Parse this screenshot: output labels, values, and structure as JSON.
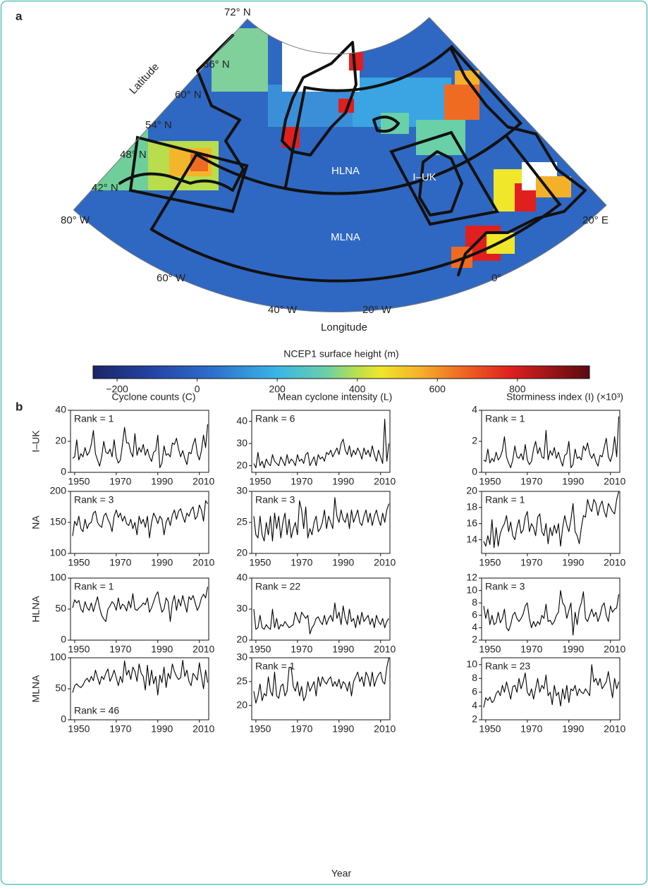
{
  "figure": {
    "label_a": "a",
    "label_b": "b"
  },
  "map": {
    "lat_labels": [
      "72° N",
      "66° N",
      "60° N",
      "54° N",
      "48° N",
      "42° N"
    ],
    "lon_labels": [
      "80° W",
      "60° W",
      "40° W",
      "20° W",
      "0°",
      "20° E"
    ],
    "xlabel": "Longitude",
    "ylabel": "Latitude",
    "regions": [
      "HLNA",
      "I–UK",
      "MLNA"
    ]
  },
  "colorbar": {
    "title": "NCEP1 surface height (m)",
    "xlim": [
      -260,
      980
    ],
    "xticks": [
      {
        "value": -200,
        "label": "−200"
      },
      0,
      200,
      400,
      600,
      800
    ]
  },
  "chart_data": {
    "type": "line",
    "color": "#000000",
    "x": [
      1949,
      1950,
      1951,
      1952,
      1953,
      1954,
      1955,
      1956,
      1957,
      1958,
      1959,
      1960,
      1961,
      1962,
      1963,
      1964,
      1965,
      1966,
      1967,
      1968,
      1969,
      1970,
      1971,
      1972,
      1973,
      1974,
      1975,
      1976,
      1977,
      1978,
      1979,
      1980,
      1981,
      1982,
      1983,
      1984,
      1985,
      1986,
      1987,
      1988,
      1989,
      1990,
      1991,
      1992,
      1993,
      1994,
      1995,
      1996,
      1997,
      1998,
      1999,
      2000,
      2001,
      2002,
      2003,
      2004,
      2005,
      2006,
      2007,
      2008,
      2009,
      2010,
      2011,
      2012,
      2013,
      2014
    ],
    "xlim": [
      1948,
      2014.5
    ],
    "xticks": [
      1950,
      1970,
      1990,
      2010
    ],
    "xlabel": "Year",
    "column_titles": [
      "Cyclone counts (C)",
      "Mean cyclone intensity (L)",
      "Storminess index (I) (×10³)"
    ],
    "row_labels": [
      "I–UK",
      "NA",
      "HLNA",
      "MLNA"
    ],
    "panels": [
      {
        "annotation": "Rank = 1",
        "annotation_position": "upper-left",
        "ylim": [
          0,
          40
        ],
        "yticks": [
          0,
          20,
          40
        ],
        "values": [
          9,
          10,
          21,
          8,
          12,
          10,
          16,
          11,
          13,
          18,
          27,
          12,
          8,
          4,
          10,
          20,
          13,
          12,
          15,
          10,
          21,
          10,
          6,
          8,
          18,
          29,
          19,
          19,
          13,
          10,
          25,
          11,
          16,
          13,
          18,
          11,
          15,
          10,
          7,
          13,
          14,
          24,
          3,
          6,
          17,
          11,
          12,
          10,
          19,
          18,
          22,
          15,
          10,
          14,
          9,
          5,
          13,
          12,
          18,
          22,
          12,
          8,
          14,
          24,
          16,
          31
        ]
      },
      {
        "annotation": "Rank = 6",
        "annotation_position": "upper-left",
        "ylim": [
          17,
          45
        ],
        "yticks": [
          20,
          30,
          40
        ],
        "values": [
          21,
          19,
          26,
          20,
          22,
          19,
          23,
          21,
          20,
          25,
          22,
          21,
          20,
          24,
          22,
          20,
          25,
          21,
          23,
          22,
          20,
          25,
          22,
          23,
          21,
          25,
          26,
          20,
          22,
          24,
          20,
          25,
          23,
          24,
          22,
          26,
          25,
          27,
          24,
          26,
          28,
          25,
          30,
          32,
          27,
          25,
          29,
          24,
          27,
          25,
          28,
          26,
          23,
          28,
          25,
          27,
          24,
          29,
          25,
          22,
          27,
          24,
          21,
          41,
          22,
          30
        ]
      },
      {
        "annotation": "Rank = 1",
        "annotation_position": "upper-left",
        "ylim": [
          0,
          4
        ],
        "yticks": [
          0,
          2,
          4
        ],
        "values": [
          0.8,
          0.7,
          1.5,
          0.6,
          0.9,
          0.7,
          1.3,
          0.8,
          1.0,
          1.4,
          2.3,
          1.0,
          0.6,
          0.3,
          0.8,
          1.7,
          1.0,
          0.9,
          1.2,
          0.8,
          1.8,
          0.8,
          0.5,
          0.7,
          1.5,
          2.0,
          1.2,
          1.6,
          1.0,
          0.9,
          2.7,
          0.8,
          1.4,
          1.1,
          1.6,
          0.9,
          1.3,
          0.8,
          0.4,
          1.1,
          1.2,
          2.0,
          0.3,
          0.5,
          1.5,
          0.9,
          1.0,
          0.8,
          1.7,
          1.4,
          1.9,
          1.2,
          0.9,
          1.2,
          0.7,
          0.4,
          1.1,
          1.0,
          1.6,
          2.2,
          1.0,
          0.7,
          1.2,
          2.3,
          1.0,
          3.6
        ]
      },
      {
        "annotation": "Rank = 3",
        "annotation_position": "upper-left",
        "ylim": [
          100,
          200
        ],
        "yticks": [
          100,
          150,
          200
        ],
        "values": [
          128,
          152,
          145,
          160,
          140,
          135,
          155,
          140,
          148,
          150,
          165,
          168,
          150,
          145,
          142,
          160,
          165,
          155,
          148,
          135,
          160,
          170,
          158,
          165,
          152,
          160,
          148,
          145,
          155,
          140,
          150,
          130,
          160,
          148,
          155,
          142,
          160,
          125,
          150,
          165,
          158,
          148,
          160,
          155,
          130,
          150,
          158,
          145,
          162,
          170,
          155,
          168,
          172,
          160,
          150,
          165,
          160,
          170,
          175,
          155,
          160,
          178,
          170,
          152,
          185,
          180
        ]
      },
      {
        "annotation": "Rank = 3",
        "annotation_position": "upper-left",
        "ylim": [
          20,
          30
        ],
        "yticks": [
          20,
          25,
          30
        ],
        "values": [
          26,
          23,
          22.5,
          26,
          23,
          22,
          25,
          23,
          26,
          22,
          26.5,
          24,
          26,
          22.5,
          25,
          26.5,
          23,
          25.5,
          22.5,
          24,
          25,
          23,
          28.5,
          27,
          24,
          27.5,
          22.5,
          24,
          23,
          25,
          26,
          23.5,
          24,
          25,
          27,
          24,
          26,
          25,
          24,
          29,
          26,
          25,
          27,
          25.5,
          25,
          26.5,
          24,
          27,
          25,
          26,
          27,
          25,
          24.5,
          26,
          27,
          25,
          26.5,
          24.5,
          26,
          27,
          25.5,
          24.5,
          26.5,
          25,
          27,
          28
        ]
      },
      {
        "annotation": "Rank = 1",
        "annotation_position": "upper-left",
        "ylim": [
          12.3,
          20
        ],
        "yticks": [
          14,
          16,
          18,
          20
        ],
        "values": [
          13.8,
          13.2,
          14.5,
          13.4,
          16.5,
          13,
          15.5,
          13.2,
          14.8,
          15.5,
          16,
          17,
          15,
          16.2,
          14.5,
          14,
          15.5,
          16.5,
          14.8,
          15.2,
          16.8,
          17.5,
          15,
          16,
          15.5,
          14.5,
          16.8,
          17.2,
          15,
          14.5,
          16,
          13.5,
          15.5,
          14.5,
          15.8,
          14.8,
          16,
          13.2,
          15.5,
          17,
          15.8,
          15,
          16.5,
          18.5,
          15,
          14.5,
          13.5,
          15.5,
          17,
          16.8,
          19,
          18,
          17.5,
          19,
          18.5,
          17,
          18.2,
          18.8,
          17.5,
          16.8,
          18.5,
          18,
          17.5,
          17.2,
          19,
          20
        ]
      },
      {
        "annotation": "Rank = 1",
        "annotation_position": "upper-left",
        "ylim": [
          0,
          100
        ],
        "yticks": [
          0,
          50,
          100
        ],
        "values": [
          52,
          65,
          60,
          64,
          50,
          45,
          62,
          52,
          48,
          60,
          46,
          58,
          70,
          52,
          40,
          34,
          30,
          50,
          55,
          62,
          58,
          48,
          68,
          50,
          58,
          55,
          47,
          63,
          52,
          75,
          50,
          48,
          52,
          55,
          60,
          57,
          68,
          45,
          52,
          62,
          72,
          78,
          60,
          45,
          50,
          68,
          62,
          30,
          60,
          72,
          48,
          66,
          55,
          72,
          58,
          45,
          70,
          65,
          72,
          60,
          48,
          55,
          68,
          74,
          68,
          86
        ]
      },
      {
        "annotation": "Rank = 22",
        "annotation_position": "upper-left",
        "ylim": [
          20,
          40
        ],
        "yticks": [
          20,
          30,
          40
        ],
        "values": [
          30,
          23.5,
          24,
          28,
          24,
          23.5,
          25,
          24,
          23.5,
          30,
          24,
          27,
          23.5,
          25,
          24.5,
          26,
          25,
          24,
          24.5,
          25,
          29,
          27,
          25.5,
          29,
          28,
          27,
          28,
          22,
          24,
          25,
          27,
          27.5,
          26,
          25,
          28,
          25,
          27,
          28,
          26,
          32,
          27,
          29,
          25,
          31,
          27,
          25,
          30,
          26,
          27,
          24,
          28,
          25,
          29,
          26,
          27,
          28,
          25,
          27,
          24,
          28,
          26,
          25,
          27,
          24,
          26,
          27
        ]
      },
      {
        "annotation": "Rank = 3",
        "annotation_position": "upper-left",
        "ylim": [
          2,
          12
        ],
        "yticks": [
          2,
          4,
          6,
          8,
          10,
          12
        ],
        "values": [
          7.5,
          5.5,
          7,
          4.5,
          6,
          4.5,
          4.8,
          6.5,
          4.8,
          5.5,
          7,
          4,
          3.5,
          4.5,
          6,
          6.5,
          5.5,
          5,
          5.5,
          6.2,
          7.5,
          8,
          5.5,
          4,
          5,
          4.2,
          5,
          4.5,
          6,
          5.5,
          7.8,
          5,
          5.2,
          4.5,
          5,
          6,
          6.5,
          10,
          8,
          7.5,
          5.5,
          6.8,
          8,
          2.8,
          6.5,
          4.5,
          7,
          8,
          9.8,
          5.5,
          5,
          6,
          7,
          5.8,
          6.5,
          5,
          6,
          7.5,
          8,
          6,
          5,
          7.5,
          6.5,
          7,
          7.2,
          9.4
        ]
      },
      {
        "annotation": "Rank = 46",
        "annotation_position": "lower-left",
        "ylim": [
          0,
          100
        ],
        "yticks": [
          0,
          50,
          100
        ],
        "values": [
          44,
          55,
          58,
          54,
          52,
          56,
          63,
          67,
          61,
          70,
          63,
          80,
          68,
          57,
          70,
          65,
          75,
          82,
          62,
          70,
          80,
          68,
          55,
          70,
          60,
          95,
          72,
          80,
          65,
          85,
          78,
          62,
          90,
          75,
          70,
          48,
          88,
          55,
          80,
          58,
          70,
          40,
          72,
          60,
          85,
          52,
          75,
          66,
          90,
          78,
          70,
          65,
          68,
          96,
          70,
          80,
          62,
          55,
          75,
          70,
          64,
          92,
          70,
          50,
          80,
          60
        ]
      },
      {
        "annotation": "Rank = 1",
        "annotation_position": "upper-left",
        "ylim": [
          17,
          30
        ],
        "yticks": [
          20,
          25,
          30
        ],
        "values": [
          23,
          20.5,
          22,
          24.5,
          21,
          22.5,
          22,
          26,
          23,
          22,
          27,
          22,
          21.5,
          24,
          24.5,
          22,
          23,
          28,
          28,
          24,
          23,
          25,
          22,
          24,
          21,
          22,
          25,
          23,
          24,
          25,
          22,
          26,
          24,
          26,
          25,
          24.5,
          25.5,
          26,
          24,
          25,
          24,
          25.5,
          23.5,
          25,
          24.5,
          23,
          25,
          22,
          25,
          26,
          27,
          25,
          26,
          24,
          27,
          26,
          24,
          27,
          24,
          25.5,
          26.5,
          27,
          25,
          24.5,
          28,
          30
        ]
      },
      {
        "annotation": "Rank = 23",
        "annotation_position": "upper-left",
        "ylim": [
          2,
          11
        ],
        "yticks": [
          2,
          4,
          6,
          8,
          10
        ],
        "values": [
          3.8,
          5.2,
          4.8,
          5.3,
          4.5,
          4.8,
          5.8,
          6.2,
          5.5,
          7,
          6,
          7.5,
          6.3,
          5,
          6.8,
          7,
          6,
          8,
          6.5,
          7.5,
          8.8,
          6,
          5.5,
          6.5,
          5,
          6.5,
          8,
          6,
          7,
          6.5,
          8.5,
          5.5,
          6,
          4.2,
          7,
          5.5,
          6,
          4,
          6.5,
          5,
          7,
          4.5,
          6.5,
          6.2,
          7,
          5.5,
          6.5,
          6,
          5.8,
          6.5,
          6,
          5.5,
          10,
          7.5,
          8,
          7,
          8,
          6.5,
          7,
          7.5,
          9,
          7,
          5.2,
          8,
          6.5,
          7.5
        ]
      }
    ]
  }
}
